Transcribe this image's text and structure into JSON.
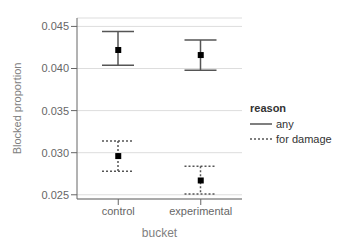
{
  "chart_data": {
    "type": "errorbar",
    "xlabel": "bucket",
    "ylabel": "Blocked proportion",
    "categories": [
      "control",
      "experimental"
    ],
    "series": [
      {
        "name": "any",
        "color": "#555555",
        "line_style": "solid",
        "marker": "square",
        "values": [
          0.0422,
          0.0416
        ],
        "lower": [
          0.0404,
          0.0398
        ],
        "upper": [
          0.0444,
          0.0434
        ]
      },
      {
        "name": "for damage",
        "color": "#555555",
        "line_style": "dotted",
        "marker": "square",
        "values": [
          0.0296,
          0.0267
        ],
        "lower": [
          0.0278,
          0.0251
        ],
        "upper": [
          0.0314,
          0.0284
        ]
      }
    ],
    "ylim": [
      0.0245,
      0.046
    ],
    "yticks": [
      0.025,
      {
        "value": 0.03,
        "label": "0.030"
      },
      0.035,
      {
        "value": 0.04,
        "label": "0.040"
      },
      0.045
    ],
    "grid": true,
    "legend": "right",
    "legend_title": "reason"
  }
}
